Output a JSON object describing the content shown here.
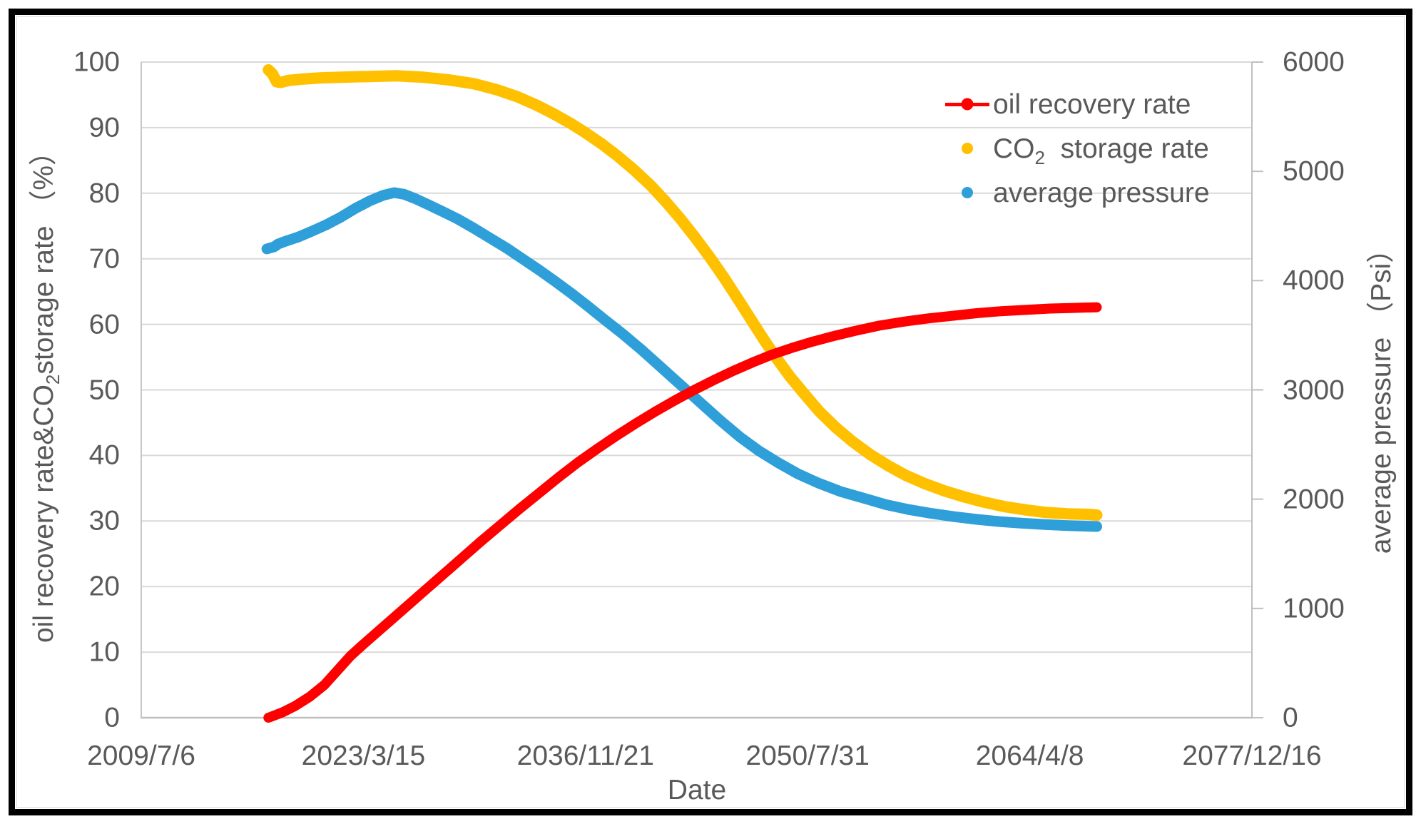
{
  "figure": {
    "background": "#ffffff",
    "frame_color": "#000000",
    "text_color": "#595959",
    "grid_color": "#d9d9d9",
    "axis_color": "#bfbfbf"
  },
  "titles": {
    "left_pre": "oil recovery rate&CO",
    "left_sub": "2",
    "left_post": "storage rate （%）",
    "right": "average pressure （Psi）"
  },
  "legend": {
    "items": [
      {
        "label": "oil recovery rate",
        "color": "#ff0000",
        "marker": "line-dot"
      },
      {
        "pre": "CO",
        "sub": "2",
        "post": "  storage rate",
        "color": "#ffc000",
        "marker": "dot"
      },
      {
        "label": "average pressure",
        "color": "#2e9fd8",
        "marker": "dot"
      }
    ]
  },
  "chart_data": {
    "type": "line",
    "title": "",
    "grid": "horizontal",
    "legend_position": "inside-top-right",
    "x_axis": {
      "title": "Date",
      "type": "date",
      "tick_labels": [
        "2009/7/6",
        "2023/3/15",
        "2036/11/21",
        "2050/7/31",
        "2064/4/8",
        "2077/12/16"
      ],
      "range_decimal_years": [
        2009.51,
        2077.96
      ]
    },
    "y_axis_left": {
      "label": "oil recovery rate & CO2 storage rate (%)",
      "range": [
        0,
        100
      ],
      "ticks": [
        0,
        10,
        20,
        30,
        40,
        50,
        60,
        70,
        80,
        90,
        100
      ]
    },
    "y_axis_right": {
      "label": "average pressure (Psi)",
      "range": [
        0,
        6000
      ],
      "ticks": [
        0,
        1000,
        2000,
        3000,
        4000,
        5000,
        6000
      ]
    },
    "series": [
      {
        "name": "CO2 storage rate",
        "color": "#ffc000",
        "axis": "left",
        "unit": "%",
        "stroke": 16,
        "points": [
          [
            2017.35,
            98.8
          ],
          [
            2017.6,
            98.2
          ],
          [
            2017.85,
            97.0
          ],
          [
            2018.1,
            96.9
          ],
          [
            2018.6,
            97.2
          ],
          [
            2019.4,
            97.4
          ],
          [
            2020.6,
            97.6
          ],
          [
            2022.0,
            97.7
          ],
          [
            2023.6,
            97.8
          ],
          [
            2025.2,
            97.9
          ],
          [
            2026.8,
            97.7
          ],
          [
            2028.4,
            97.3
          ],
          [
            2030.0,
            96.7
          ],
          [
            2031.4,
            95.8
          ],
          [
            2032.7,
            94.7
          ],
          [
            2033.9,
            93.4
          ],
          [
            2035.0,
            92.0
          ],
          [
            2036.0,
            90.6
          ],
          [
            2036.9,
            89.2
          ],
          [
            2037.9,
            87.5
          ],
          [
            2038.9,
            85.6
          ],
          [
            2039.9,
            83.5
          ],
          [
            2040.9,
            81.2
          ],
          [
            2041.8,
            78.8
          ],
          [
            2042.7,
            76.2
          ],
          [
            2043.6,
            73.4
          ],
          [
            2044.5,
            70.4
          ],
          [
            2045.4,
            67.2
          ],
          [
            2046.3,
            63.8
          ],
          [
            2047.1,
            60.7
          ],
          [
            2047.9,
            57.6
          ],
          [
            2048.7,
            54.7
          ],
          [
            2049.5,
            52.0
          ],
          [
            2050.4,
            49.3
          ],
          [
            2051.3,
            46.7
          ],
          [
            2052.3,
            44.3
          ],
          [
            2053.3,
            42.2
          ],
          [
            2054.4,
            40.2
          ],
          [
            2055.5,
            38.5
          ],
          [
            2056.6,
            37.0
          ],
          [
            2057.8,
            35.7
          ],
          [
            2059.0,
            34.6
          ],
          [
            2060.2,
            33.7
          ],
          [
            2061.4,
            32.9
          ],
          [
            2062.7,
            32.2
          ],
          [
            2064.0,
            31.7
          ],
          [
            2065.3,
            31.3
          ],
          [
            2066.6,
            31.1
          ],
          [
            2068.0,
            31.0
          ],
          [
            2068.4,
            30.9
          ]
        ]
      },
      {
        "name": "average pressure",
        "color": "#2e9fd8",
        "axis": "right",
        "unit": "Psi",
        "stroke": 15,
        "points": [
          [
            2017.25,
            4290
          ],
          [
            2017.7,
            4310
          ],
          [
            2017.95,
            4335
          ],
          [
            2018.4,
            4360
          ],
          [
            2019.2,
            4400
          ],
          [
            2020.0,
            4450
          ],
          [
            2020.9,
            4510
          ],
          [
            2021.8,
            4580
          ],
          [
            2022.7,
            4660
          ],
          [
            2023.6,
            4730
          ],
          [
            2024.4,
            4780
          ],
          [
            2025.1,
            4805
          ],
          [
            2025.7,
            4790
          ],
          [
            2026.4,
            4750
          ],
          [
            2027.2,
            4695
          ],
          [
            2028.1,
            4630
          ],
          [
            2029.0,
            4565
          ],
          [
            2030.0,
            4480
          ],
          [
            2031.0,
            4390
          ],
          [
            2032.0,
            4300
          ],
          [
            2033.0,
            4200
          ],
          [
            2034.0,
            4100
          ],
          [
            2035.0,
            3995
          ],
          [
            2036.0,
            3885
          ],
          [
            2037.0,
            3770
          ],
          [
            2038.0,
            3650
          ],
          [
            2039.2,
            3510
          ],
          [
            2040.4,
            3360
          ],
          [
            2041.6,
            3200
          ],
          [
            2042.8,
            3040
          ],
          [
            2044.0,
            2880
          ],
          [
            2045.2,
            2720
          ],
          [
            2046.4,
            2570
          ],
          [
            2047.6,
            2440
          ],
          [
            2048.8,
            2330
          ],
          [
            2050.0,
            2230
          ],
          [
            2051.2,
            2150
          ],
          [
            2052.6,
            2070
          ],
          [
            2054.0,
            2010
          ],
          [
            2055.4,
            1950
          ],
          [
            2056.8,
            1905
          ],
          [
            2058.2,
            1870
          ],
          [
            2059.6,
            1840
          ],
          [
            2061.0,
            1815
          ],
          [
            2062.4,
            1795
          ],
          [
            2063.8,
            1780
          ],
          [
            2065.2,
            1768
          ],
          [
            2066.6,
            1758
          ],
          [
            2068.0,
            1752
          ],
          [
            2068.4,
            1750
          ]
        ]
      },
      {
        "name": "oil recovery rate",
        "color": "#ff0000",
        "axis": "left",
        "unit": "%",
        "stroke": 14,
        "points": [
          [
            2017.35,
            0
          ],
          [
            2018.2,
            0.8
          ],
          [
            2019.0,
            1.8
          ],
          [
            2019.9,
            3.2
          ],
          [
            2020.8,
            5.0
          ],
          [
            2021.6,
            7.2
          ],
          [
            2022.4,
            9.4
          ],
          [
            2023.2,
            11.2
          ],
          [
            2024.4,
            13.8
          ],
          [
            2025.6,
            16.4
          ],
          [
            2026.8,
            19.0
          ],
          [
            2028.0,
            21.6
          ],
          [
            2029.2,
            24.2
          ],
          [
            2030.4,
            26.8
          ],
          [
            2031.6,
            29.3
          ],
          [
            2032.8,
            31.8
          ],
          [
            2034.0,
            34.2
          ],
          [
            2035.2,
            36.6
          ],
          [
            2036.4,
            38.9
          ],
          [
            2037.6,
            41.0
          ],
          [
            2038.8,
            43.0
          ],
          [
            2040.0,
            44.9
          ],
          [
            2041.2,
            46.7
          ],
          [
            2042.4,
            48.4
          ],
          [
            2043.6,
            50.0
          ],
          [
            2044.8,
            51.5
          ],
          [
            2046.0,
            52.9
          ],
          [
            2047.2,
            54.2
          ],
          [
            2048.4,
            55.4
          ],
          [
            2049.6,
            56.4
          ],
          [
            2050.8,
            57.3
          ],
          [
            2052.0,
            58.1
          ],
          [
            2053.5,
            59.0
          ],
          [
            2055.0,
            59.8
          ],
          [
            2056.5,
            60.4
          ],
          [
            2058.0,
            60.9
          ],
          [
            2059.5,
            61.3
          ],
          [
            2061.0,
            61.7
          ],
          [
            2062.5,
            62.0
          ],
          [
            2064.0,
            62.2
          ],
          [
            2065.5,
            62.4
          ],
          [
            2067.0,
            62.5
          ],
          [
            2068.4,
            62.6
          ]
        ]
      }
    ]
  }
}
